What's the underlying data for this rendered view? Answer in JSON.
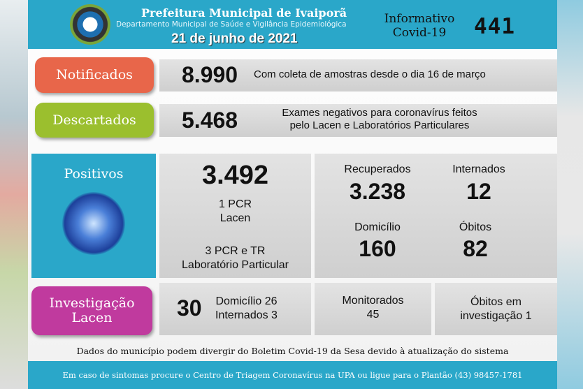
{
  "header": {
    "title": "Prefeitura Municipal de Ivaiporã",
    "department": "Departamento Municipal de Saúde e Vigilância Epidemiológica",
    "date": "21 de junho de 2021",
    "informativo": "Informativo",
    "covid": "Covid-19",
    "number": "441"
  },
  "notificados": {
    "label": "Notificados",
    "value": "8.990",
    "desc": "Com coleta de amostras desde o dia 16 de março",
    "color": "#e8664a"
  },
  "descartados": {
    "label": "Descartados",
    "value": "5.468",
    "desc1": "Exames negativos para coronavírus feitos",
    "desc2": "pelo Lacen e Laboratórios Particulares",
    "color": "#9bbf2e"
  },
  "positivos": {
    "label": "Positivos",
    "value": "3.492",
    "lacen1": "1 PCR",
    "lacen2": "Lacen",
    "lab1": "3 PCR e TR",
    "lab2": "Laboratório Particular",
    "color": "#2aa7c9",
    "recuperados_label": "Recuperados",
    "recuperados": "3.238",
    "internados_label": "Internados",
    "internados": "12",
    "domicilio_label": "Domicílio",
    "domicilio": "160",
    "obitos_label": "Óbitos",
    "obitos": "82"
  },
  "investigacao": {
    "label1": "Investigação",
    "label2": "Lacen",
    "value": "30",
    "domicilio": "Domicílio 26",
    "internados": "Internados 3",
    "monitorados_label": "Monitorados",
    "monitorados": "45",
    "obitos1": "Óbitos em",
    "obitos2": "investigação 1",
    "color": "#c03a9e"
  },
  "disclaimer": "Dados do município podem divergir do Boletim Covid-19 da Sesa devido à atualização do sistema",
  "footer": "Em caso de sintomas procure o Centro de Triagem Coronavírus na UPA ou ligue para o Plantão (43) 98457-1781"
}
